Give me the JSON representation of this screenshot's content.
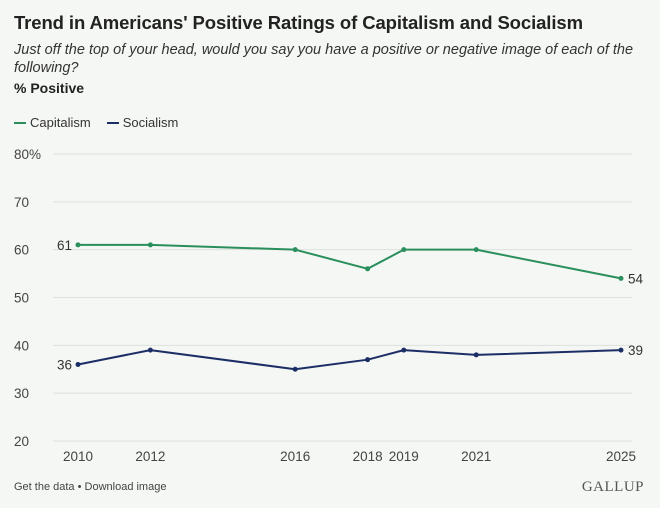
{
  "header": {
    "title": "Trend in Americans' Positive Ratings of Capitalism and Socialism",
    "subtitle": "Just off the top of your head, would you say you have a positive or negative image of each of the following?",
    "unit_label": "% Positive"
  },
  "footer": {
    "get_data": "Get the data",
    "separator": " • ",
    "download_image": "Download image",
    "brand": "GALLUP"
  },
  "chart_data": {
    "type": "line",
    "x": [
      2010,
      2012,
      2016,
      2018,
      2019,
      2021,
      2025
    ],
    "series": [
      {
        "name": "Capitalism",
        "color": "#2a8f5c",
        "values": [
          61,
          61,
          60,
          56,
          60,
          60,
          54
        ]
      },
      {
        "name": "Socialism",
        "color": "#1c2e66",
        "values": [
          36,
          39,
          35,
          37,
          39,
          38,
          39
        ]
      }
    ],
    "ylim": [
      20,
      80
    ],
    "yticks": [
      "20",
      "30",
      "40",
      "50",
      "60",
      "70",
      "80%"
    ],
    "xticks": [
      "2010",
      "2012",
      "2016",
      "2018",
      "2019",
      "2021",
      "2025"
    ],
    "end_labels": {
      "Capitalism": {
        "first": "61",
        "last": "54"
      },
      "Socialism": {
        "first": "36",
        "last": "39"
      }
    },
    "grid": true,
    "legend": "top-left"
  }
}
